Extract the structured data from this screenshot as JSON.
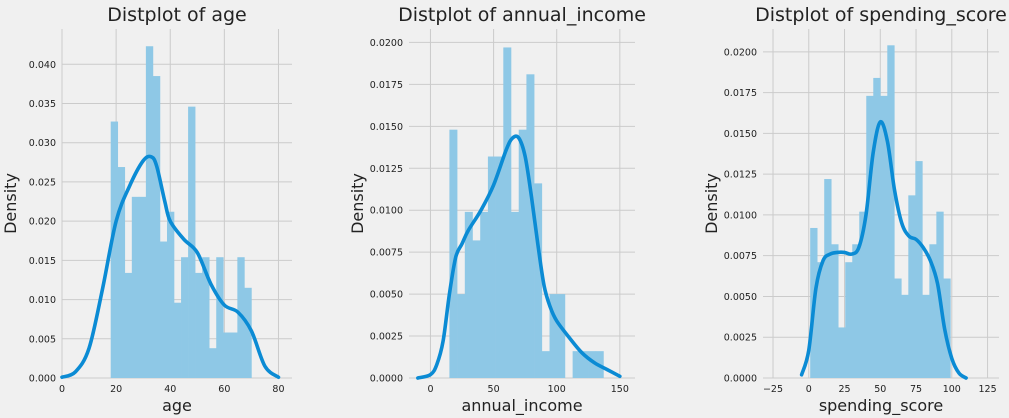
{
  "chart_data": [
    {
      "type": "histogram",
      "title": "Distplot of age",
      "xlabel": "age",
      "ylabel": "Density",
      "xlim": [
        0,
        85
      ],
      "ylim": [
        0,
        0.0445
      ],
      "xticks": [
        0,
        20,
        40,
        60,
        80
      ],
      "xtick_labels": [
        "0",
        "20",
        "40",
        "60",
        "80"
      ],
      "yticks": [
        0,
        0.005,
        0.01,
        0.015,
        0.02,
        0.025,
        0.03,
        0.035,
        0.04
      ],
      "ytick_labels": [
        "0.000",
        "0.005",
        "0.010",
        "0.015",
        "0.020",
        "0.025",
        "0.030",
        "0.035",
        "0.040"
      ],
      "grid": true,
      "bins": [
        {
          "x0": 18,
          "x1": 20.6,
          "value": 0.0327
        },
        {
          "x0": 20.6,
          "x1": 23.2,
          "value": 0.0269
        },
        {
          "x0": 23.2,
          "x1": 25.8,
          "value": 0.0134
        },
        {
          "x0": 25.8,
          "x1": 28.4,
          "value": 0.0231
        },
        {
          "x0": 28.4,
          "x1": 31.0,
          "value": 0.0231
        },
        {
          "x0": 31.0,
          "x1": 33.6,
          "value": 0.0423
        },
        {
          "x0": 33.6,
          "x1": 36.2,
          "value": 0.0385
        },
        {
          "x0": 36.2,
          "x1": 38.8,
          "value": 0.0174
        },
        {
          "x0": 38.8,
          "x1": 41.4,
          "value": 0.0212
        },
        {
          "x0": 41.4,
          "x1": 44.0,
          "value": 0.0096
        },
        {
          "x0": 44.0,
          "x1": 46.6,
          "value": 0.0154
        },
        {
          "x0": 46.6,
          "x1": 49.2,
          "value": 0.0346
        },
        {
          "x0": 49.2,
          "x1": 51.8,
          "value": 0.0134
        },
        {
          "x0": 51.8,
          "x1": 54.4,
          "value": 0.0154
        },
        {
          "x0": 54.4,
          "x1": 57.0,
          "value": 0.0038
        },
        {
          "x0": 57.0,
          "x1": 59.6,
          "value": 0.0154
        },
        {
          "x0": 59.6,
          "x1": 62.2,
          "value": 0.0058
        },
        {
          "x0": 62.2,
          "x1": 64.8,
          "value": 0.0058
        },
        {
          "x0": 64.8,
          "x1": 67.4,
          "value": 0.0154
        },
        {
          "x0": 67.4,
          "x1": 70.0,
          "value": 0.0115
        }
      ],
      "kde": {
        "x": [
          0,
          5,
          10,
          15,
          20,
          25,
          30,
          33,
          35,
          38,
          40,
          45,
          50,
          55,
          60,
          65,
          70,
          75,
          80
        ],
        "y": [
          0.0001,
          0.0008,
          0.0038,
          0.0114,
          0.02,
          0.0245,
          0.0277,
          0.0282,
          0.027,
          0.0225,
          0.02,
          0.0177,
          0.016,
          0.012,
          0.0093,
          0.0084,
          0.006,
          0.0015,
          0.0001
        ]
      }
    },
    {
      "type": "histogram",
      "title": "Distplot of annual_income",
      "xlabel": "annual_income",
      "ylabel": "Density",
      "xlim": [
        -17,
        162
      ],
      "ylim": [
        0,
        0.0208
      ],
      "xticks": [
        0,
        50,
        100,
        150
      ],
      "xtick_labels": [
        "0",
        "50",
        "100",
        "150"
      ],
      "yticks": [
        0,
        0.0025,
        0.005,
        0.0075,
        0.01,
        0.0125,
        0.015,
        0.0175,
        0.02
      ],
      "ytick_labels": [
        "0.0000",
        "0.0025",
        "0.0050",
        "0.0075",
        "0.0100",
        "0.0125",
        "0.0150",
        "0.0175",
        "0.0200"
      ],
      "grid": true,
      "bins": [
        {
          "x0": 15.0,
          "x1": 21.1,
          "value": 0.0148
        },
        {
          "x0": 21.1,
          "x1": 27.2,
          "value": 0.005
        },
        {
          "x0": 27.2,
          "x1": 33.3,
          "value": 0.0099
        },
        {
          "x0": 33.3,
          "x1": 39.4,
          "value": 0.0082
        },
        {
          "x0": 39.4,
          "x1": 45.5,
          "value": 0.0099
        },
        {
          "x0": 45.5,
          "x1": 51.6,
          "value": 0.0132
        },
        {
          "x0": 51.6,
          "x1": 57.7,
          "value": 0.0132
        },
        {
          "x0": 57.7,
          "x1": 63.8,
          "value": 0.0197
        },
        {
          "x0": 63.8,
          "x1": 69.9,
          "value": 0.0099
        },
        {
          "x0": 69.9,
          "x1": 76.0,
          "value": 0.0148
        },
        {
          "x0": 76.0,
          "x1": 82.1,
          "value": 0.0181
        },
        {
          "x0": 82.1,
          "x1": 88.2,
          "value": 0.0116
        },
        {
          "x0": 88.2,
          "x1": 94.3,
          "value": 0.0016
        },
        {
          "x0": 94.3,
          "x1": 100.4,
          "value": 0.005
        },
        {
          "x0": 100.4,
          "x1": 106.5,
          "value": 0.005
        },
        {
          "x0": 106.5,
          "x1": 112.6,
          "value": 0.0
        },
        {
          "x0": 112.6,
          "x1": 118.7,
          "value": 0.0016
        },
        {
          "x0": 118.7,
          "x1": 124.8,
          "value": 0.0016
        },
        {
          "x0": 124.8,
          "x1": 130.9,
          "value": 0.0016
        },
        {
          "x0": 130.9,
          "x1": 137.0,
          "value": 0.0016
        }
      ],
      "kde": {
        "x": [
          -10,
          0,
          5,
          10,
          15,
          20,
          25,
          30,
          40,
          50,
          60,
          65,
          70,
          75,
          80,
          85,
          90,
          95,
          100,
          110,
          120,
          130,
          140,
          150
        ],
        "y": [
          0.0,
          0.0002,
          0.0008,
          0.0022,
          0.005,
          0.0072,
          0.008,
          0.0088,
          0.01,
          0.0115,
          0.0136,
          0.0143,
          0.0143,
          0.0132,
          0.0108,
          0.008,
          0.0055,
          0.0042,
          0.0034,
          0.0024,
          0.0015,
          0.0009,
          0.0005,
          0.0001
        ]
      }
    },
    {
      "type": "histogram",
      "title": "Distplot of spending_score",
      "xlabel": "spending_score",
      "ylabel": "Density",
      "xlim": [
        -32,
        133
      ],
      "ylim": [
        0,
        0.0214
      ],
      "xticks": [
        -25,
        0,
        25,
        50,
        75,
        100,
        125
      ],
      "xtick_labels": [
        "−25",
        "0",
        "25",
        "50",
        "75",
        "100",
        "125"
      ],
      "yticks": [
        0,
        0.0025,
        0.005,
        0.0075,
        0.01,
        0.0125,
        0.015,
        0.0175,
        0.02
      ],
      "ytick_labels": [
        "0.0000",
        "0.0025",
        "0.0050",
        "0.0075",
        "0.0100",
        "0.0125",
        "0.0150",
        "0.0175",
        "0.0200"
      ],
      "grid": true,
      "bins": [
        {
          "x0": 1.0,
          "x1": 5.9,
          "value": 0.0092
        },
        {
          "x0": 5.9,
          "x1": 10.8,
          "value": 0.0071
        },
        {
          "x0": 10.8,
          "x1": 15.7,
          "value": 0.0122
        },
        {
          "x0": 15.7,
          "x1": 20.6,
          "value": 0.0082
        },
        {
          "x0": 20.6,
          "x1": 25.5,
          "value": 0.0031
        },
        {
          "x0": 25.5,
          "x1": 30.4,
          "value": 0.0071
        },
        {
          "x0": 30.4,
          "x1": 35.3,
          "value": 0.0082
        },
        {
          "x0": 35.3,
          "x1": 40.2,
          "value": 0.0102
        },
        {
          "x0": 40.2,
          "x1": 45.1,
          "value": 0.0173
        },
        {
          "x0": 45.1,
          "x1": 50.0,
          "value": 0.0184
        },
        {
          "x0": 50.0,
          "x1": 54.9,
          "value": 0.0173
        },
        {
          "x0": 54.9,
          "x1": 59.8,
          "value": 0.0204
        },
        {
          "x0": 59.8,
          "x1": 64.7,
          "value": 0.0061
        },
        {
          "x0": 64.7,
          "x1": 69.6,
          "value": 0.0051
        },
        {
          "x0": 69.6,
          "x1": 74.5,
          "value": 0.0112
        },
        {
          "x0": 74.5,
          "x1": 79.4,
          "value": 0.0133
        },
        {
          "x0": 79.4,
          "x1": 84.3,
          "value": 0.0051
        },
        {
          "x0": 84.3,
          "x1": 89.2,
          "value": 0.0082
        },
        {
          "x0": 89.2,
          "x1": 94.1,
          "value": 0.0102
        },
        {
          "x0": 94.1,
          "x1": 99.0,
          "value": 0.0061
        }
      ],
      "kde": {
        "x": [
          -5,
          0,
          5,
          10,
          15,
          20,
          25,
          30,
          35,
          40,
          45,
          50,
          55,
          60,
          65,
          70,
          75,
          80,
          85,
          90,
          95,
          100,
          105,
          110
        ],
        "y": [
          0.0002,
          0.0017,
          0.0055,
          0.0072,
          0.0076,
          0.0077,
          0.0077,
          0.0076,
          0.008,
          0.01,
          0.0138,
          0.0157,
          0.0145,
          0.0115,
          0.0095,
          0.0087,
          0.0085,
          0.008,
          0.0072,
          0.0058,
          0.003,
          0.0012,
          0.0003,
          0.0
        ]
      }
    }
  ]
}
